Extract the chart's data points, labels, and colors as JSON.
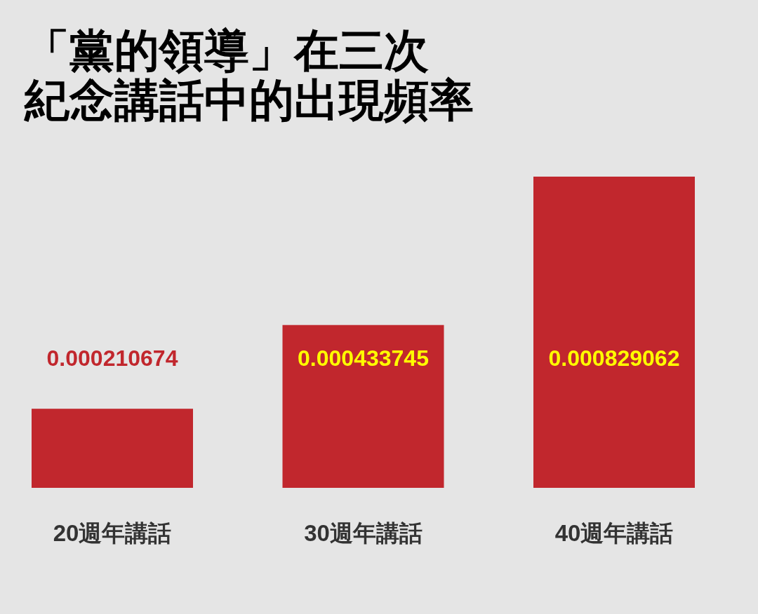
{
  "chart_data": {
    "type": "bar",
    "title": "「黨的領導」在三次紀念講話中的出現頻率",
    "categories": [
      "20週年講話",
      "30週年講話",
      "40週年講話"
    ],
    "values": [
      0.000210674,
      0.000433745,
      0.000829062
    ],
    "color": "#c1272d",
    "data_labels": true
  }
}
